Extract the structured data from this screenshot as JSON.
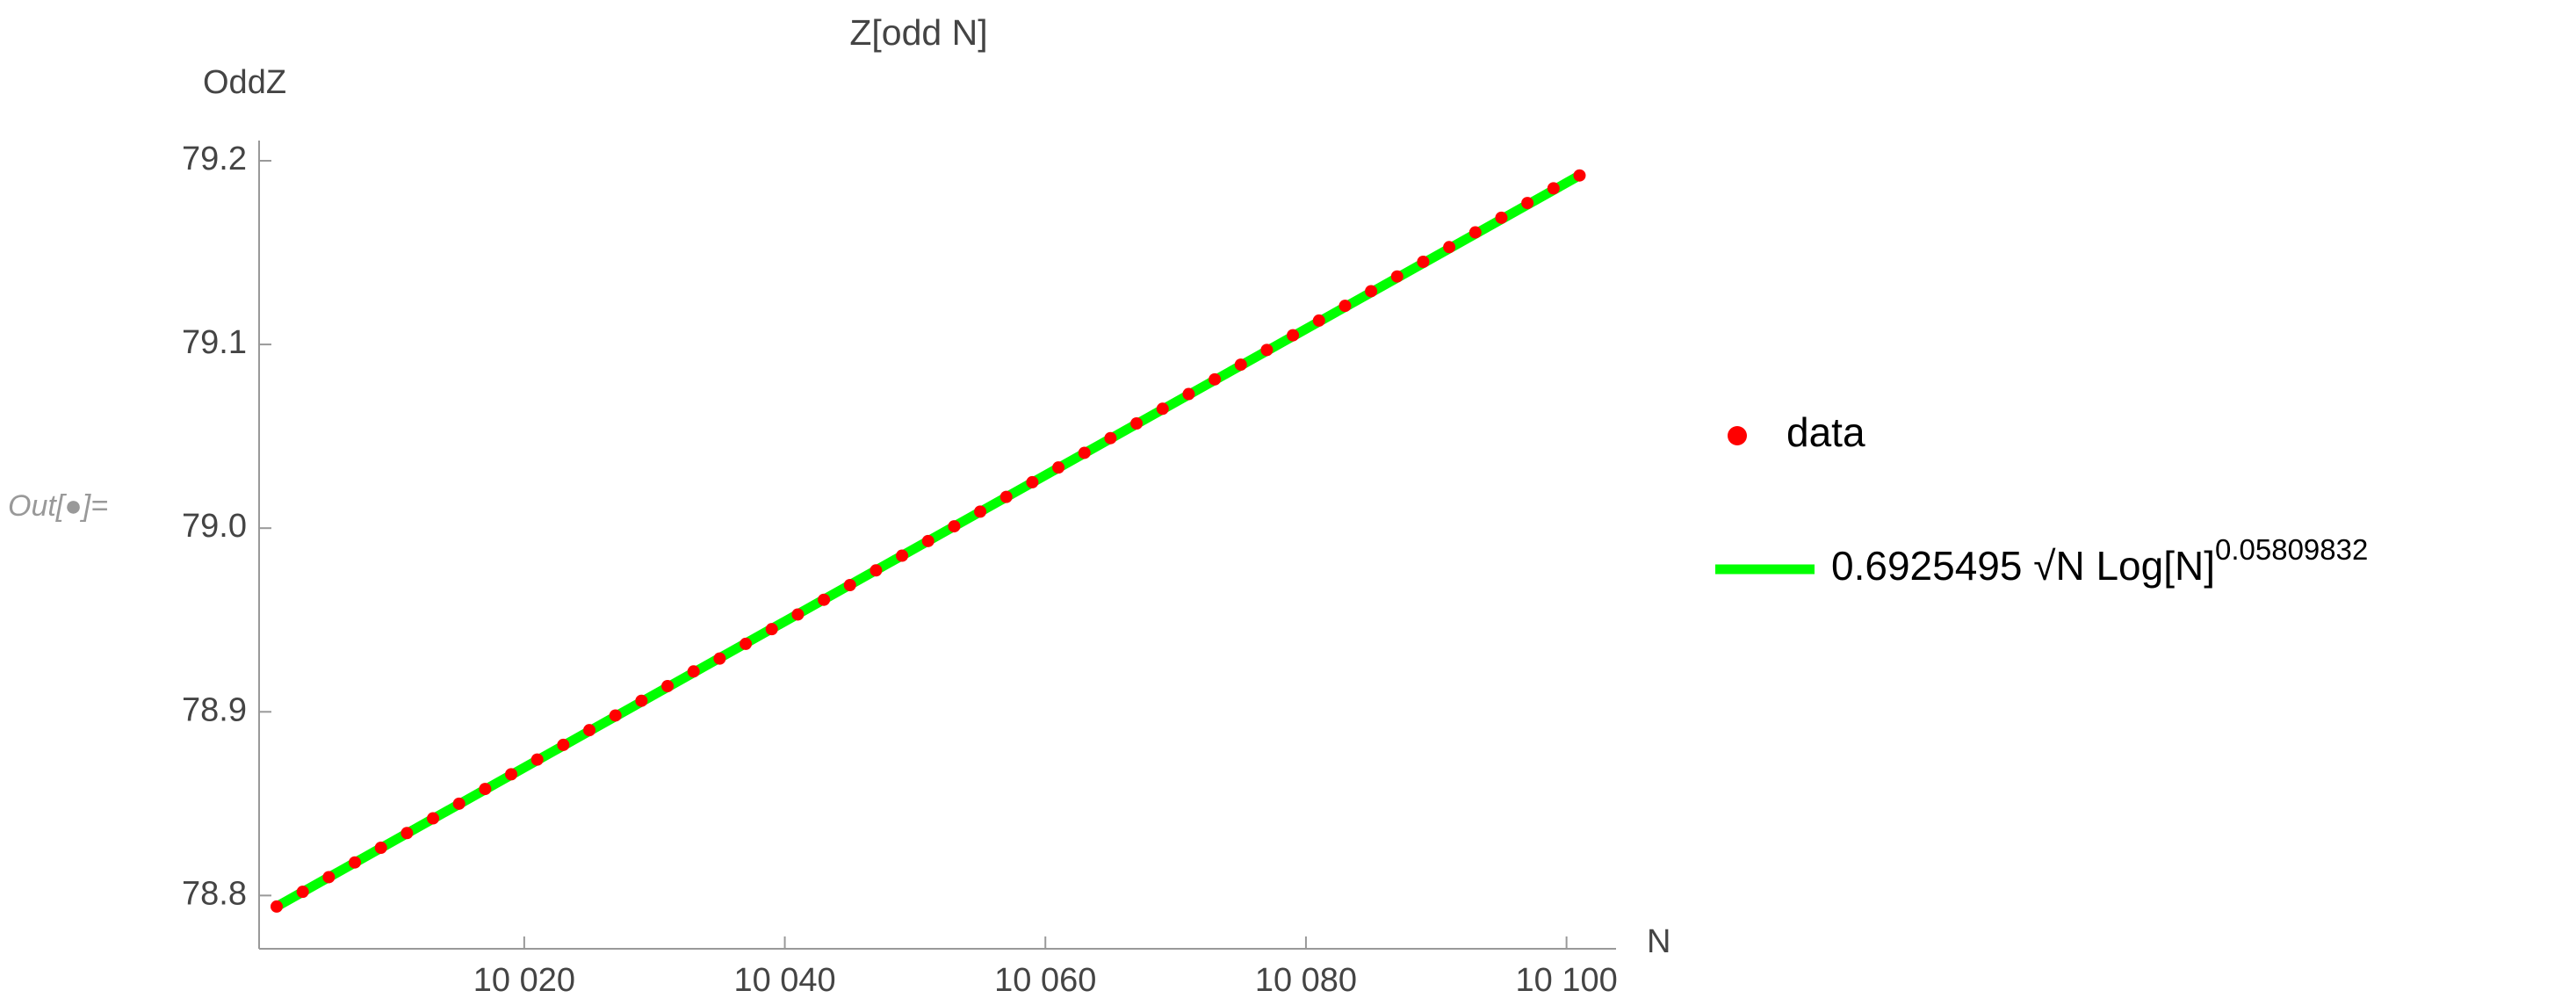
{
  "cell_label": "Out[●]=",
  "chart_data": {
    "type": "scatter",
    "title": "Z[odd N]",
    "y_label": "OddZ",
    "x_label": "N",
    "xlim": [
      9999.65,
      10103.8
    ],
    "ylim": [
      78.771,
      79.211
    ],
    "xticks": [
      {
        "value": 10020,
        "label": "10 020"
      },
      {
        "value": 10040,
        "label": "10 040"
      },
      {
        "value": 10060,
        "label": "10 060"
      },
      {
        "value": 10080,
        "label": "10 080"
      },
      {
        "value": 10100,
        "label": "10 100"
      }
    ],
    "yticks": [
      78.8,
      78.9,
      {
        "value": 79.0,
        "label": "79.0"
      },
      79.1,
      79.2
    ],
    "legend": "right",
    "series": [
      {
        "name": "data",
        "kind": "points",
        "color": "#ff0000",
        "x": [
          10001,
          10003,
          10005,
          10007,
          10009,
          10011,
          10013,
          10015,
          10017,
          10019,
          10021,
          10023,
          10025,
          10027,
          10029,
          10031,
          10033,
          10035,
          10037,
          10039,
          10041,
          10043,
          10045,
          10047,
          10049,
          10051,
          10053,
          10055,
          10057,
          10059,
          10061,
          10063,
          10065,
          10067,
          10069,
          10071,
          10073,
          10075,
          10077,
          10079,
          10081,
          10083,
          10085,
          10087,
          10089,
          10091,
          10093,
          10095,
          10097,
          10099,
          10101
        ],
        "values": [
          78.794,
          78.802,
          78.81,
          78.818,
          78.826,
          78.834,
          78.842,
          78.85,
          78.858,
          78.866,
          78.874,
          78.882,
          78.89,
          78.898,
          78.906,
          78.914,
          78.922,
          78.929,
          78.937,
          78.945,
          78.953,
          78.961,
          78.969,
          78.977,
          78.985,
          78.993,
          79.001,
          79.009,
          79.017,
          79.025,
          79.033,
          79.041,
          79.049,
          79.057,
          79.065,
          79.073,
          79.081,
          79.089,
          79.097,
          79.105,
          79.113,
          79.121,
          79.129,
          79.137,
          79.145,
          79.153,
          79.161,
          79.169,
          79.177,
          79.185,
          79.192
        ]
      },
      {
        "name": "0.6925495 √N Log[N]",
        "name_superscript": "0.05809832",
        "kind": "line",
        "color": "#00ff00",
        "x": [
          10001,
          10101
        ],
        "values": [
          78.794,
          79.192
        ]
      }
    ]
  }
}
